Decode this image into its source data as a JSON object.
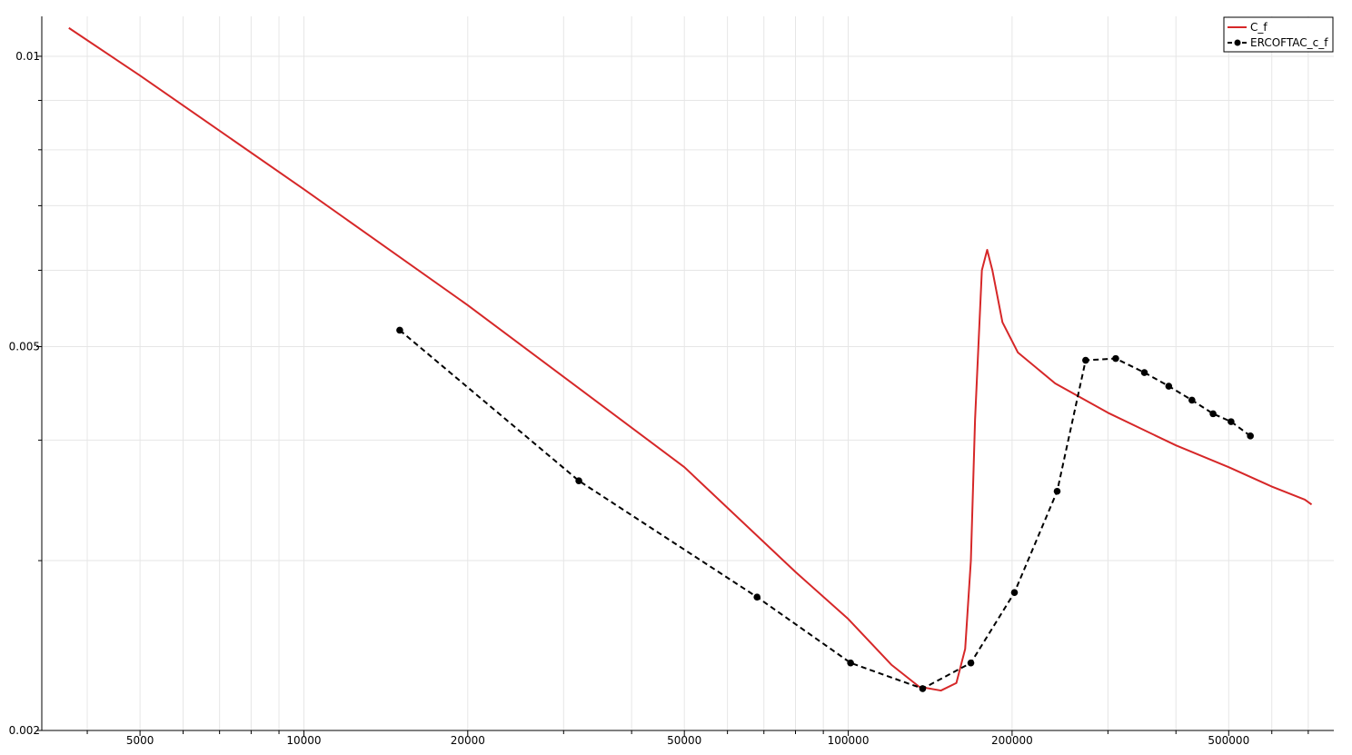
{
  "chart_data": {
    "type": "line",
    "title": "",
    "xlabel": "",
    "ylabel": "",
    "x_scale": "log",
    "y_scale": "log",
    "xlim": [
      3300,
      780000
    ],
    "ylim": [
      0.002,
      0.011
    ],
    "grid": true,
    "legend_position": "top-right",
    "x_ticks": [
      {
        "value": 5000,
        "label": "5000"
      },
      {
        "value": 10000,
        "label": "10000"
      },
      {
        "value": 20000,
        "label": "20000"
      },
      {
        "value": 50000,
        "label": "50000"
      },
      {
        "value": 100000,
        "label": "100000"
      },
      {
        "value": 200000,
        "label": "200000"
      },
      {
        "value": 500000,
        "label": "500000"
      }
    ],
    "x_minor_ticks": [
      4000,
      6000,
      7000,
      8000,
      9000,
      30000,
      40000,
      60000,
      70000,
      80000,
      90000,
      300000,
      400000,
      600000,
      700000
    ],
    "y_ticks": [
      {
        "value": 0.002,
        "label": "0.002"
      },
      {
        "value": 0.005,
        "label": "0.005"
      },
      {
        "value": 0.01,
        "label": "0.01"
      }
    ],
    "y_minor_ticks": [
      0.003,
      0.004,
      0.006,
      0.007,
      0.008,
      0.009
    ],
    "series": [
      {
        "name": "C_f",
        "color": "#d62728",
        "style": "solid",
        "markers": false,
        "points": [
          [
            3700,
            0.0107
          ],
          [
            5000,
            0.00955
          ],
          [
            10000,
            0.00728
          ],
          [
            20000,
            0.00552
          ],
          [
            50000,
            0.00375
          ],
          [
            80000,
            0.00292
          ],
          [
            100000,
            0.00261
          ],
          [
            120000,
            0.00234
          ],
          [
            135000,
            0.00222
          ],
          [
            148000,
            0.0022
          ],
          [
            158000,
            0.00224
          ],
          [
            164000,
            0.00243
          ],
          [
            168000,
            0.003
          ],
          [
            171000,
            0.0042
          ],
          [
            176000,
            0.006
          ],
          [
            180000,
            0.0063
          ],
          [
            184000,
            0.006
          ],
          [
            192000,
            0.0053
          ],
          [
            205000,
            0.00493
          ],
          [
            240000,
            0.00458
          ],
          [
            300000,
            0.00427
          ],
          [
            400000,
            0.00395
          ],
          [
            500000,
            0.00375
          ],
          [
            600000,
            0.00358
          ],
          [
            690000,
            0.00347
          ],
          [
            710000,
            0.00343
          ]
        ]
      },
      {
        "name": "ERCOFTAC_c_f",
        "color": "#000000",
        "style": "dashed",
        "markers": true,
        "points": [
          [
            15000,
            0.0052
          ],
          [
            32000,
            0.00363
          ],
          [
            68000,
            0.00275
          ],
          [
            101000,
            0.00235
          ],
          [
            137000,
            0.00221
          ],
          [
            168000,
            0.00235
          ],
          [
            202000,
            0.00278
          ],
          [
            242000,
            0.00354
          ],
          [
            273000,
            0.00484
          ],
          [
            310000,
            0.00486
          ],
          [
            350000,
            0.0047
          ],
          [
            388000,
            0.00455
          ],
          [
            428000,
            0.0044
          ],
          [
            468000,
            0.00426
          ],
          [
            505000,
            0.00418
          ],
          [
            548000,
            0.00404
          ]
        ]
      }
    ]
  }
}
